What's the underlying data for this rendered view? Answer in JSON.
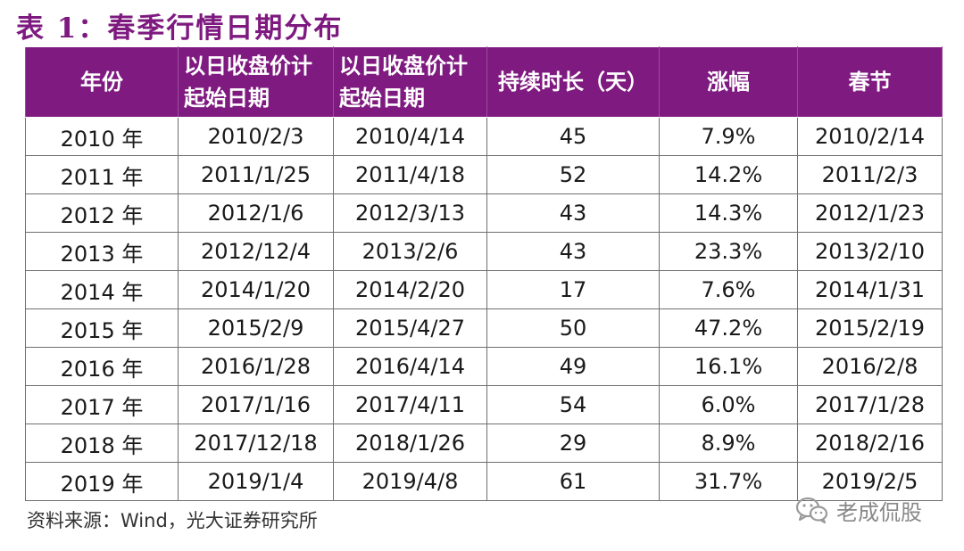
{
  "title": "表 1：春季行情日期分布",
  "table": {
    "headers": [
      {
        "line1": "年份",
        "line2": ""
      },
      {
        "line1": "以日收盘价计",
        "line2": "起始日期"
      },
      {
        "line1": "以日收盘价计",
        "line2": "起始日期"
      },
      {
        "line1": "持续时长（天）",
        "line2": ""
      },
      {
        "line1": "涨幅",
        "line2": ""
      },
      {
        "line1": "春节",
        "line2": ""
      }
    ],
    "rows": [
      [
        "2010 年",
        "2010/2/3",
        "2010/4/14",
        "45",
        "7.9%",
        "2010/2/14"
      ],
      [
        "2011 年",
        "2011/1/25",
        "2011/4/18",
        "52",
        "14.2%",
        "2011/2/3"
      ],
      [
        "2012 年",
        "2012/1/6",
        "2012/3/13",
        "43",
        "14.3%",
        "2012/1/23"
      ],
      [
        "2013 年",
        "2012/12/4",
        "2013/2/6",
        "43",
        "23.3%",
        "2013/2/10"
      ],
      [
        "2014 年",
        "2014/1/20",
        "2014/2/20",
        "17",
        "7.6%",
        "2014/1/31"
      ],
      [
        "2015 年",
        "2015/2/9",
        "2015/4/27",
        "50",
        "47.2%",
        "2015/2/19"
      ],
      [
        "2016 年",
        "2016/1/28",
        "2016/4/14",
        "49",
        "16.1%",
        "2016/2/8"
      ],
      [
        "2017 年",
        "2017/1/16",
        "2017/4/11",
        "54",
        "6.0%",
        "2017/1/28"
      ],
      [
        "2018 年",
        "2017/12/18",
        "2018/1/26",
        "29",
        "8.9%",
        "2018/2/16"
      ],
      [
        "2019 年",
        "2019/1/4",
        "2019/4/8",
        "61",
        "31.7%",
        "2019/2/5"
      ]
    ]
  },
  "source": "资料来源：Wind，光大证券研究所",
  "watermark": {
    "icon": "wechat-icon",
    "text": "老成侃股"
  },
  "colors": {
    "header_bg": "#7f1a80",
    "title": "#7e1a7f"
  }
}
